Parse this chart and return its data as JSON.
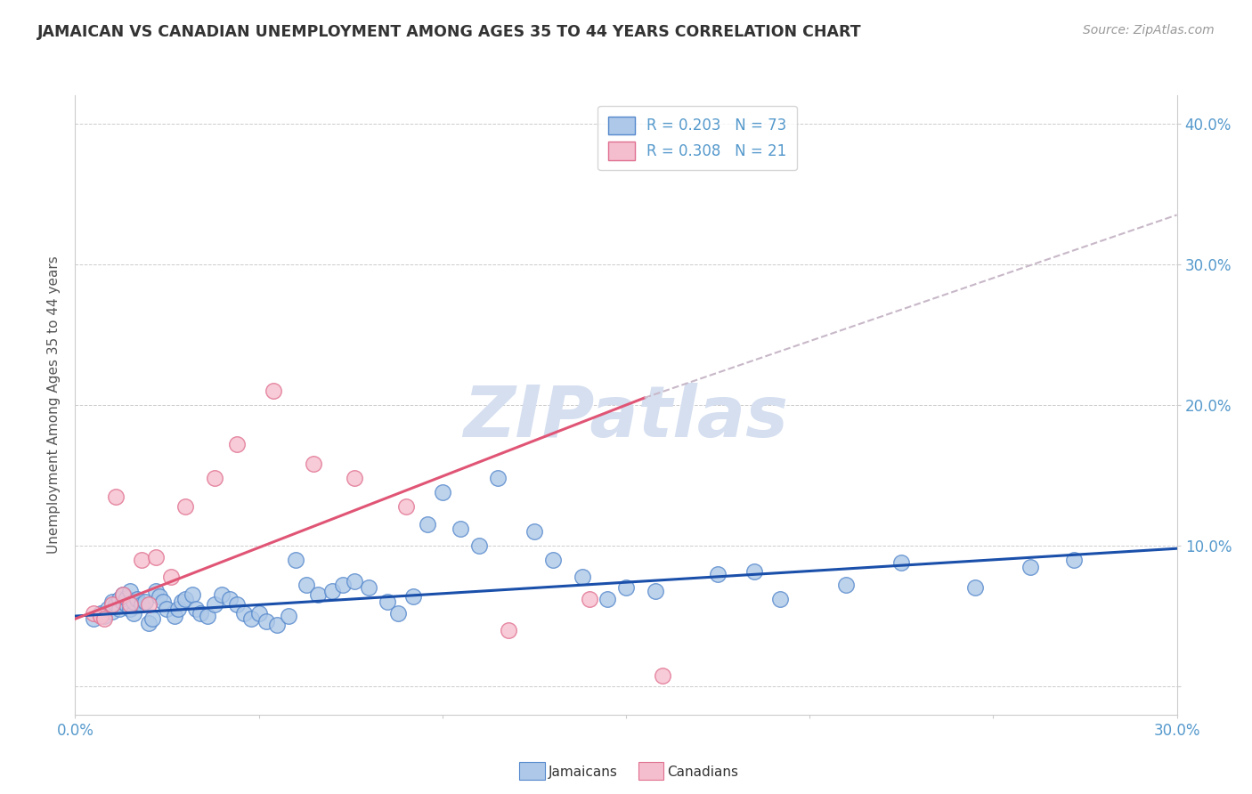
{
  "title": "JAMAICAN VS CANADIAN UNEMPLOYMENT AMONG AGES 35 TO 44 YEARS CORRELATION CHART",
  "source_text": "Source: ZipAtlas.com",
  "ylabel": "Unemployment Among Ages 35 to 44 years",
  "xlim": [
    0.0,
    0.3
  ],
  "ylim": [
    -0.02,
    0.42
  ],
  "yticks": [
    0.0,
    0.1,
    0.2,
    0.3,
    0.4
  ],
  "ytick_labels": [
    "",
    "10.0%",
    "20.0%",
    "30.0%",
    "40.0%"
  ],
  "xticks": [
    0.0,
    0.05,
    0.1,
    0.15,
    0.2,
    0.25,
    0.3
  ],
  "blue_R": 0.203,
  "blue_N": 73,
  "pink_R": 0.308,
  "pink_N": 21,
  "blue_color": "#adc8e8",
  "pink_color": "#f5bece",
  "blue_edge_color": "#5588cc",
  "pink_edge_color": "#e07090",
  "blue_line_color": "#1a4faa",
  "pink_line_color": "#e05575",
  "dashed_line_color": "#c8b8c8",
  "watermark_color": "#d5dff0",
  "background_color": "#ffffff",
  "title_color": "#333333",
  "axis_label_color": "#5599cc",
  "blue_x": [
    0.005,
    0.007,
    0.008,
    0.009,
    0.01,
    0.01,
    0.011,
    0.012,
    0.012,
    0.013,
    0.013,
    0.014,
    0.014,
    0.015,
    0.015,
    0.016,
    0.016,
    0.017,
    0.018,
    0.019,
    0.02,
    0.021,
    0.022,
    0.023,
    0.024,
    0.025,
    0.027,
    0.028,
    0.029,
    0.03,
    0.032,
    0.033,
    0.034,
    0.036,
    0.038,
    0.04,
    0.042,
    0.044,
    0.046,
    0.048,
    0.05,
    0.052,
    0.055,
    0.058,
    0.06,
    0.063,
    0.066,
    0.07,
    0.073,
    0.076,
    0.08,
    0.085,
    0.088,
    0.092,
    0.096,
    0.1,
    0.105,
    0.11,
    0.115,
    0.125,
    0.13,
    0.138,
    0.145,
    0.15,
    0.158,
    0.175,
    0.185,
    0.192,
    0.21,
    0.225,
    0.245,
    0.26,
    0.272
  ],
  "blue_y": [
    0.048,
    0.052,
    0.05,
    0.055,
    0.06,
    0.053,
    0.058,
    0.062,
    0.055,
    0.06,
    0.065,
    0.058,
    0.063,
    0.055,
    0.068,
    0.052,
    0.06,
    0.062,
    0.058,
    0.06,
    0.045,
    0.048,
    0.068,
    0.064,
    0.06,
    0.055,
    0.05,
    0.055,
    0.06,
    0.062,
    0.065,
    0.055,
    0.052,
    0.05,
    0.058,
    0.065,
    0.062,
    0.058,
    0.052,
    0.048,
    0.052,
    0.046,
    0.044,
    0.05,
    0.09,
    0.072,
    0.065,
    0.068,
    0.072,
    0.075,
    0.07,
    0.06,
    0.052,
    0.064,
    0.115,
    0.138,
    0.112,
    0.1,
    0.148,
    0.11,
    0.09,
    0.078,
    0.062,
    0.07,
    0.068,
    0.08,
    0.082,
    0.062,
    0.072,
    0.088,
    0.07,
    0.085,
    0.09
  ],
  "pink_x": [
    0.005,
    0.007,
    0.008,
    0.01,
    0.011,
    0.013,
    0.015,
    0.018,
    0.02,
    0.022,
    0.026,
    0.03,
    0.038,
    0.044,
    0.054,
    0.065,
    0.076,
    0.09,
    0.118,
    0.14,
    0.16
  ],
  "pink_y": [
    0.052,
    0.05,
    0.048,
    0.058,
    0.135,
    0.065,
    0.058,
    0.09,
    0.058,
    0.092,
    0.078,
    0.128,
    0.148,
    0.172,
    0.21,
    0.158,
    0.148,
    0.128,
    0.04,
    0.062,
    0.008
  ],
  "blue_trend_x": [
    0.0,
    0.3
  ],
  "blue_trend_y": [
    0.05,
    0.098
  ],
  "pink_trend_x": [
    0.0,
    0.155
  ],
  "pink_trend_y": [
    0.048,
    0.205
  ],
  "dash_trend_x": [
    0.155,
    0.3
  ],
  "dash_trend_y": [
    0.205,
    0.335
  ]
}
